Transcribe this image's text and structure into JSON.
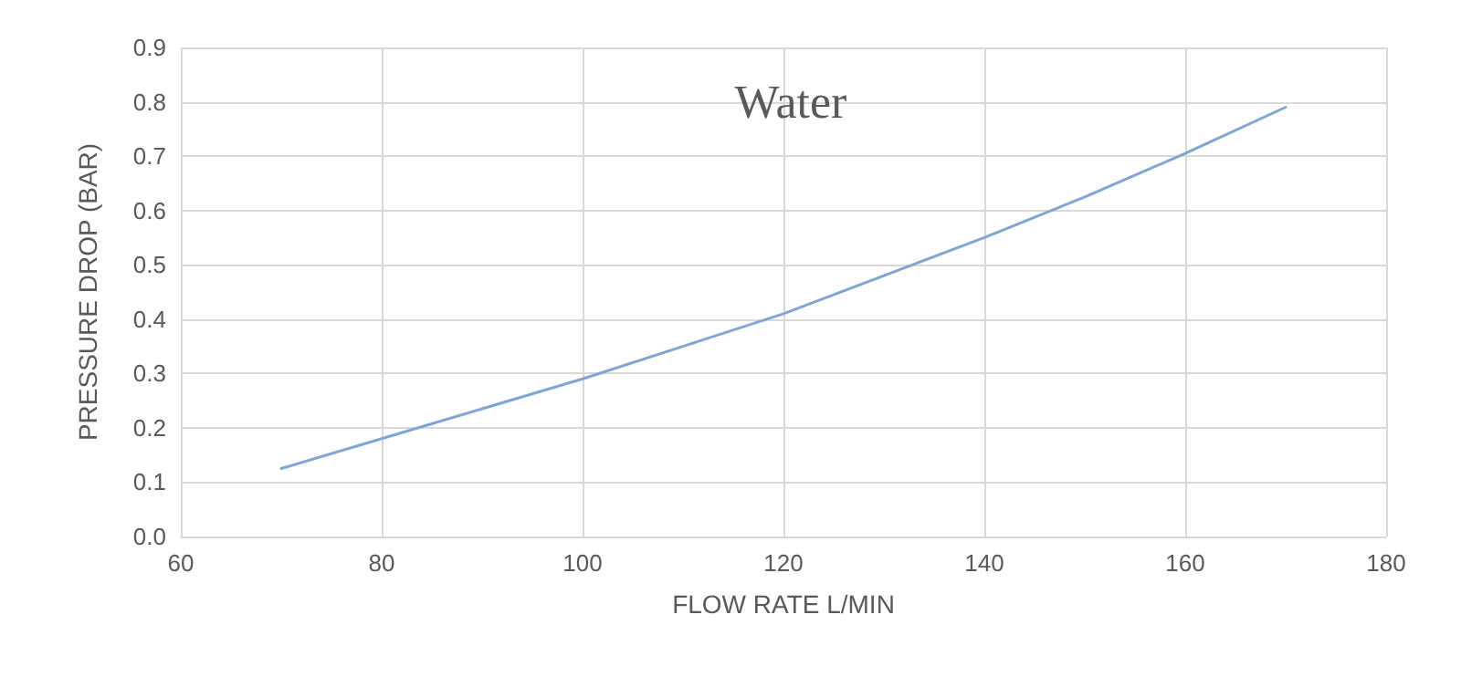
{
  "chart_data": {
    "type": "line",
    "title": "Water",
    "xlabel": "FLOW RATE L/MIN",
    "ylabel": "PRESSURE DROP (BAR)",
    "x": [
      70,
      80,
      90,
      100,
      110,
      120,
      130,
      140,
      150,
      160,
      170
    ],
    "series": [
      {
        "color": "#7fa6d3",
        "values": [
          0.125,
          0.18,
          0.235,
          0.29,
          0.35,
          0.41,
          0.48,
          0.55,
          0.625,
          0.705,
          0.79
        ]
      }
    ],
    "xlim": [
      60,
      180
    ],
    "xticks": [
      60,
      80,
      100,
      120,
      140,
      160,
      180
    ],
    "ylim": [
      0,
      0.9
    ],
    "yticks": [
      "0.0",
      0.1,
      0.2,
      0.3,
      0.4,
      0.5,
      0.6,
      0.7,
      0.8,
      0.9
    ],
    "grid": true,
    "marker": "none",
    "line_style": "solid"
  }
}
